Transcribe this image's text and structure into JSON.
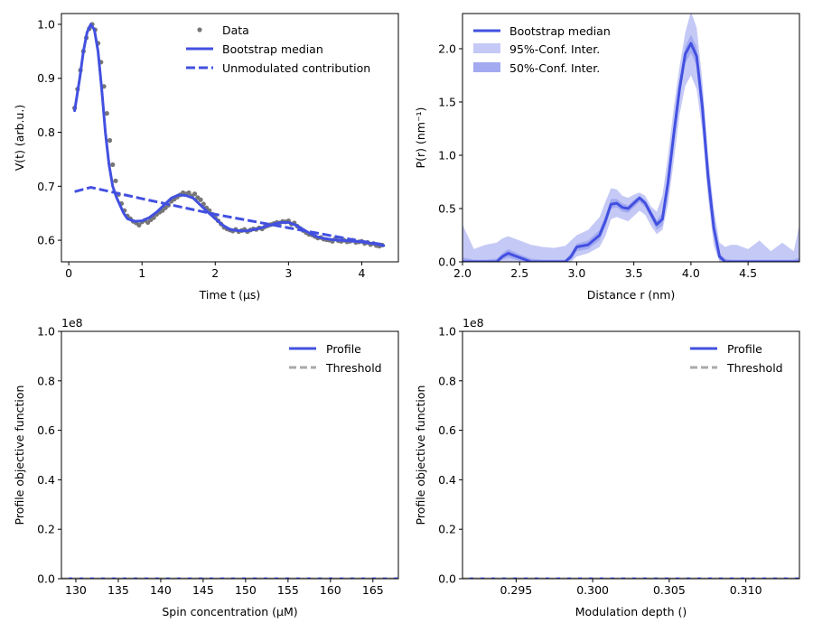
{
  "colors": {
    "primary": "#4250e0",
    "band95": "#c5c9f6",
    "band50": "#a3aaf0",
    "data": "#777777",
    "threshold": "#aaaaaa"
  },
  "chart_data": [
    {
      "type": "scatter+line",
      "xlabel": "Time t (µs)",
      "ylabel": "V(t) (arb.u.)",
      "xlim": [
        -0.1,
        4.5
      ],
      "ylim": [
        0.56,
        1.02
      ],
      "xticks": [
        0,
        1,
        2,
        3,
        4
      ],
      "yticks": [
        0.6,
        0.7,
        0.8,
        0.9,
        1.0
      ],
      "xtick_labels": [
        "0",
        "1",
        "2",
        "3",
        "4"
      ],
      "ytick_labels": [
        "0.6",
        "0.7",
        "0.8",
        "0.9",
        "1.0"
      ],
      "legend": {
        "position": "top-right",
        "entries": [
          "Data",
          "Bootstrap median",
          "Unmodulated contribution"
        ]
      },
      "series": [
        {
          "name": "Bootstrap median",
          "style": "line",
          "x": [
            0.08,
            0.15,
            0.2,
            0.25,
            0.3,
            0.35,
            0.4,
            0.45,
            0.5,
            0.55,
            0.6,
            0.65,
            0.7,
            0.75,
            0.8,
            0.9,
            1.0,
            1.1,
            1.2,
            1.3,
            1.4,
            1.5,
            1.6,
            1.7,
            1.8,
            1.9,
            2.0,
            2.1,
            2.2,
            2.3,
            2.4,
            2.5,
            2.6,
            2.7,
            2.8,
            2.9,
            3.0,
            3.1,
            3.2,
            3.3,
            3.4,
            3.5,
            3.6,
            3.7,
            3.8,
            3.9,
            4.0,
            4.1,
            4.2,
            4.3
          ],
          "y": [
            0.84,
            0.9,
            0.95,
            0.985,
            1.0,
            0.99,
            0.95,
            0.88,
            0.8,
            0.74,
            0.7,
            0.68,
            0.665,
            0.65,
            0.64,
            0.635,
            0.636,
            0.642,
            0.652,
            0.665,
            0.678,
            0.684,
            0.683,
            0.678,
            0.665,
            0.652,
            0.64,
            0.628,
            0.62,
            0.618,
            0.617,
            0.619,
            0.622,
            0.626,
            0.63,
            0.633,
            0.633,
            0.628,
            0.62,
            0.612,
            0.606,
            0.603,
            0.601,
            0.6,
            0.599,
            0.598,
            0.597,
            0.595,
            0.593,
            0.59
          ]
        },
        {
          "name": "Unmodulated contribution",
          "style": "dashed",
          "x": [
            0.08,
            0.3,
            1.0,
            2.0,
            3.0,
            4.0,
            4.3
          ],
          "y": [
            0.69,
            0.698,
            0.677,
            0.648,
            0.623,
            0.598,
            0.592
          ]
        },
        {
          "name": "Data",
          "style": "points",
          "x": [
            0.08,
            0.12,
            0.16,
            0.2,
            0.24,
            0.28,
            0.32,
            0.36,
            0.4,
            0.44,
            0.48,
            0.52,
            0.56,
            0.6,
            0.64,
            0.68,
            0.72,
            0.76,
            0.8,
            0.84,
            0.88,
            0.92,
            0.96,
            1.0,
            1.04,
            1.08,
            1.12,
            1.16,
            1.2,
            1.24,
            1.28,
            1.32,
            1.36,
            1.4,
            1.44,
            1.48,
            1.52,
            1.56,
            1.6,
            1.64,
            1.68,
            1.72,
            1.76,
            1.8,
            1.84,
            1.88,
            1.92,
            1.96,
            2.0,
            2.04,
            2.08,
            2.12,
            2.16,
            2.2,
            2.24,
            2.28,
            2.32,
            2.36,
            2.4,
            2.44,
            2.48,
            2.52,
            2.56,
            2.6,
            2.64,
            2.68,
            2.72,
            2.76,
            2.8,
            2.84,
            2.88,
            2.92,
            2.96,
            3.0,
            3.04,
            3.08,
            3.12,
            3.16,
            3.2,
            3.24,
            3.28,
            3.32,
            3.36,
            3.4,
            3.44,
            3.48,
            3.52,
            3.56,
            3.6,
            3.64,
            3.68,
            3.72,
            3.76,
            3.8,
            3.84,
            3.88,
            3.92,
            3.96,
            4.0,
            4.04,
            4.08,
            4.12,
            4.16,
            4.2,
            4.24,
            4.28
          ],
          "y": [
            0.845,
            0.88,
            0.915,
            0.95,
            0.975,
            0.992,
            1.0,
            0.99,
            0.965,
            0.93,
            0.885,
            0.835,
            0.785,
            0.74,
            0.71,
            0.685,
            0.668,
            0.655,
            0.645,
            0.64,
            0.635,
            0.632,
            0.628,
            0.634,
            0.637,
            0.633,
            0.638,
            0.642,
            0.648,
            0.652,
            0.655,
            0.66,
            0.665,
            0.672,
            0.676,
            0.68,
            0.684,
            0.688,
            0.686,
            0.688,
            0.682,
            0.686,
            0.679,
            0.675,
            0.667,
            0.66,
            0.655,
            0.648,
            0.642,
            0.636,
            0.63,
            0.624,
            0.621,
            0.619,
            0.617,
            0.62,
            0.616,
            0.618,
            0.62,
            0.616,
            0.619,
            0.621,
            0.62,
            0.623,
            0.621,
            0.625,
            0.627,
            0.629,
            0.631,
            0.633,
            0.632,
            0.635,
            0.634,
            0.636,
            0.63,
            0.632,
            0.626,
            0.622,
            0.618,
            0.614,
            0.611,
            0.61,
            0.607,
            0.604,
            0.605,
            0.602,
            0.601,
            0.6,
            0.598,
            0.603,
            0.599,
            0.598,
            0.6,
            0.597,
            0.598,
            0.6,
            0.596,
            0.597,
            0.598,
            0.594,
            0.596,
            0.592,
            0.594,
            0.59,
            0.589,
            0.591
          ]
        }
      ]
    },
    {
      "type": "line+area",
      "xlabel": "Distance r (nm)",
      "ylabel": "P(r) (nm⁻¹)",
      "xlim": [
        2.0,
        4.95
      ],
      "ylim": [
        0,
        2.33
      ],
      "xticks": [
        2.0,
        2.5,
        3.0,
        3.5,
        4.0,
        4.5
      ],
      "yticks": [
        0.0,
        0.5,
        1.0,
        1.5,
        2.0
      ],
      "xtick_labels": [
        "2.0",
        "2.5",
        "3.0",
        "3.5",
        "4.0",
        "4.5"
      ],
      "ytick_labels": [
        "0.0",
        "0.5",
        "1.0",
        "1.5",
        "2.0"
      ],
      "legend": {
        "position": "top-left",
        "entries": [
          "Bootstrap median",
          "95%-Conf. Inter.",
          "50%-Conf. Inter."
        ]
      },
      "x": [
        2.0,
        2.1,
        2.2,
        2.3,
        2.35,
        2.4,
        2.5,
        2.6,
        2.7,
        2.8,
        2.9,
        2.95,
        3.0,
        3.1,
        3.2,
        3.25,
        3.3,
        3.35,
        3.4,
        3.45,
        3.5,
        3.55,
        3.6,
        3.65,
        3.7,
        3.75,
        3.8,
        3.85,
        3.9,
        3.95,
        4.0,
        4.05,
        4.1,
        4.15,
        4.2,
        4.25,
        4.3,
        4.35,
        4.4,
        4.5,
        4.6,
        4.7,
        4.8,
        4.9,
        4.95
      ],
      "series": [
        {
          "name": "Bootstrap median",
          "values": [
            0.0,
            0.0,
            0.0,
            0.0,
            0.05,
            0.08,
            0.04,
            0.0,
            0.0,
            0.0,
            0.0,
            0.05,
            0.14,
            0.16,
            0.25,
            0.38,
            0.54,
            0.55,
            0.51,
            0.5,
            0.55,
            0.6,
            0.55,
            0.45,
            0.35,
            0.4,
            0.75,
            1.2,
            1.62,
            1.95,
            2.05,
            1.93,
            1.45,
            0.8,
            0.32,
            0.05,
            0.0,
            0.0,
            0.0,
            0.0,
            0.0,
            0.0,
            0.0,
            0.0,
            0.0
          ]
        },
        {
          "name": "95%-Conf. Inter.",
          "upper": [
            0.35,
            0.12,
            0.16,
            0.18,
            0.22,
            0.24,
            0.2,
            0.16,
            0.14,
            0.13,
            0.15,
            0.2,
            0.25,
            0.3,
            0.42,
            0.56,
            0.69,
            0.68,
            0.62,
            0.6,
            0.63,
            0.65,
            0.62,
            0.52,
            0.47,
            0.62,
            1.0,
            1.45,
            1.83,
            2.15,
            2.35,
            2.2,
            1.7,
            1.0,
            0.5,
            0.18,
            0.14,
            0.16,
            0.16,
            0.12,
            0.2,
            0.1,
            0.18,
            0.1,
            0.35
          ],
          "lower": [
            0,
            0,
            0,
            0,
            0,
            0,
            0,
            0,
            0,
            0,
            0,
            0,
            0.05,
            0.08,
            0.14,
            0.24,
            0.4,
            0.42,
            0.4,
            0.38,
            0.43,
            0.48,
            0.44,
            0.34,
            0.26,
            0.3,
            0.54,
            0.95,
            1.38,
            1.65,
            1.75,
            1.62,
            1.22,
            0.6,
            0.15,
            0,
            0,
            0,
            0,
            0,
            0,
            0,
            0,
            0,
            0
          ]
        },
        {
          "name": "50%-Conf. Inter.",
          "upper": [
            0.04,
            0.02,
            0.02,
            0.03,
            0.08,
            0.12,
            0.07,
            0.03,
            0.02,
            0.02,
            0.02,
            0.08,
            0.17,
            0.2,
            0.3,
            0.43,
            0.59,
            0.59,
            0.55,
            0.53,
            0.58,
            0.62,
            0.58,
            0.48,
            0.39,
            0.46,
            0.83,
            1.28,
            1.69,
            2.02,
            2.13,
            2.02,
            1.52,
            0.86,
            0.38,
            0.08,
            0.03,
            0.02,
            0.02,
            0.02,
            0.02,
            0.02,
            0.02,
            0.02,
            0.04
          ],
          "lower": [
            0,
            0,
            0,
            0,
            0.02,
            0.04,
            0.01,
            0,
            0,
            0,
            0,
            0.02,
            0.1,
            0.12,
            0.2,
            0.33,
            0.5,
            0.51,
            0.47,
            0.46,
            0.51,
            0.56,
            0.51,
            0.41,
            0.3,
            0.34,
            0.67,
            1.12,
            1.55,
            1.86,
            1.96,
            1.84,
            1.36,
            0.72,
            0.26,
            0.02,
            0,
            0,
            0,
            0,
            0,
            0,
            0,
            0,
            0
          ]
        }
      ]
    },
    {
      "type": "line",
      "xlabel": "Spin concentration (μM)",
      "ylabel": "Profile objective function",
      "offset_label": "1e8",
      "xlim": [
        128.3,
        168.0
      ],
      "ylim": [
        0,
        1.0
      ],
      "xticks": [
        130,
        135,
        140,
        145,
        150,
        155,
        160,
        165
      ],
      "yticks": [
        0.0,
        0.2,
        0.4,
        0.6,
        0.8,
        1.0
      ],
      "xtick_labels": [
        "130",
        "135",
        "140",
        "145",
        "150",
        "155",
        "160",
        "165"
      ],
      "ytick_labels": [
        "0.0",
        "0.2",
        "0.4",
        "0.6",
        "0.8",
        "1.0"
      ],
      "legend": {
        "position": "top-right",
        "entries": [
          "Profile",
          "Threshold"
        ]
      },
      "series": [
        {
          "name": "Profile",
          "style": "solid",
          "x": [
            128.3,
            168.0
          ],
          "y": [
            0,
            0
          ]
        },
        {
          "name": "Threshold",
          "style": "dashed",
          "x": [
            128.3,
            168.0
          ],
          "y": [
            0,
            0
          ]
        }
      ]
    },
    {
      "type": "line",
      "xlabel": "Modulation depth ()",
      "ylabel": "Profile objective function",
      "offset_label": "1e8",
      "xlim": [
        0.2915,
        0.3135
      ],
      "ylim": [
        0,
        1.0
      ],
      "xticks": [
        0.295,
        0.3,
        0.305,
        0.31
      ],
      "yticks": [
        0.0,
        0.2,
        0.4,
        0.6,
        0.8,
        1.0
      ],
      "xtick_labels": [
        "0.295",
        "0.300",
        "0.305",
        "0.310"
      ],
      "ytick_labels": [
        "0.0",
        "0.2",
        "0.4",
        "0.6",
        "0.8",
        "1.0"
      ],
      "legend": {
        "position": "top-right",
        "entries": [
          "Profile",
          "Threshold"
        ]
      },
      "series": [
        {
          "name": "Profile",
          "style": "solid",
          "x": [
            0.2915,
            0.3135
          ],
          "y": [
            0,
            0
          ]
        },
        {
          "name": "Threshold",
          "style": "dashed",
          "x": [
            0.2915,
            0.3135
          ],
          "y": [
            0,
            0
          ]
        }
      ]
    }
  ]
}
